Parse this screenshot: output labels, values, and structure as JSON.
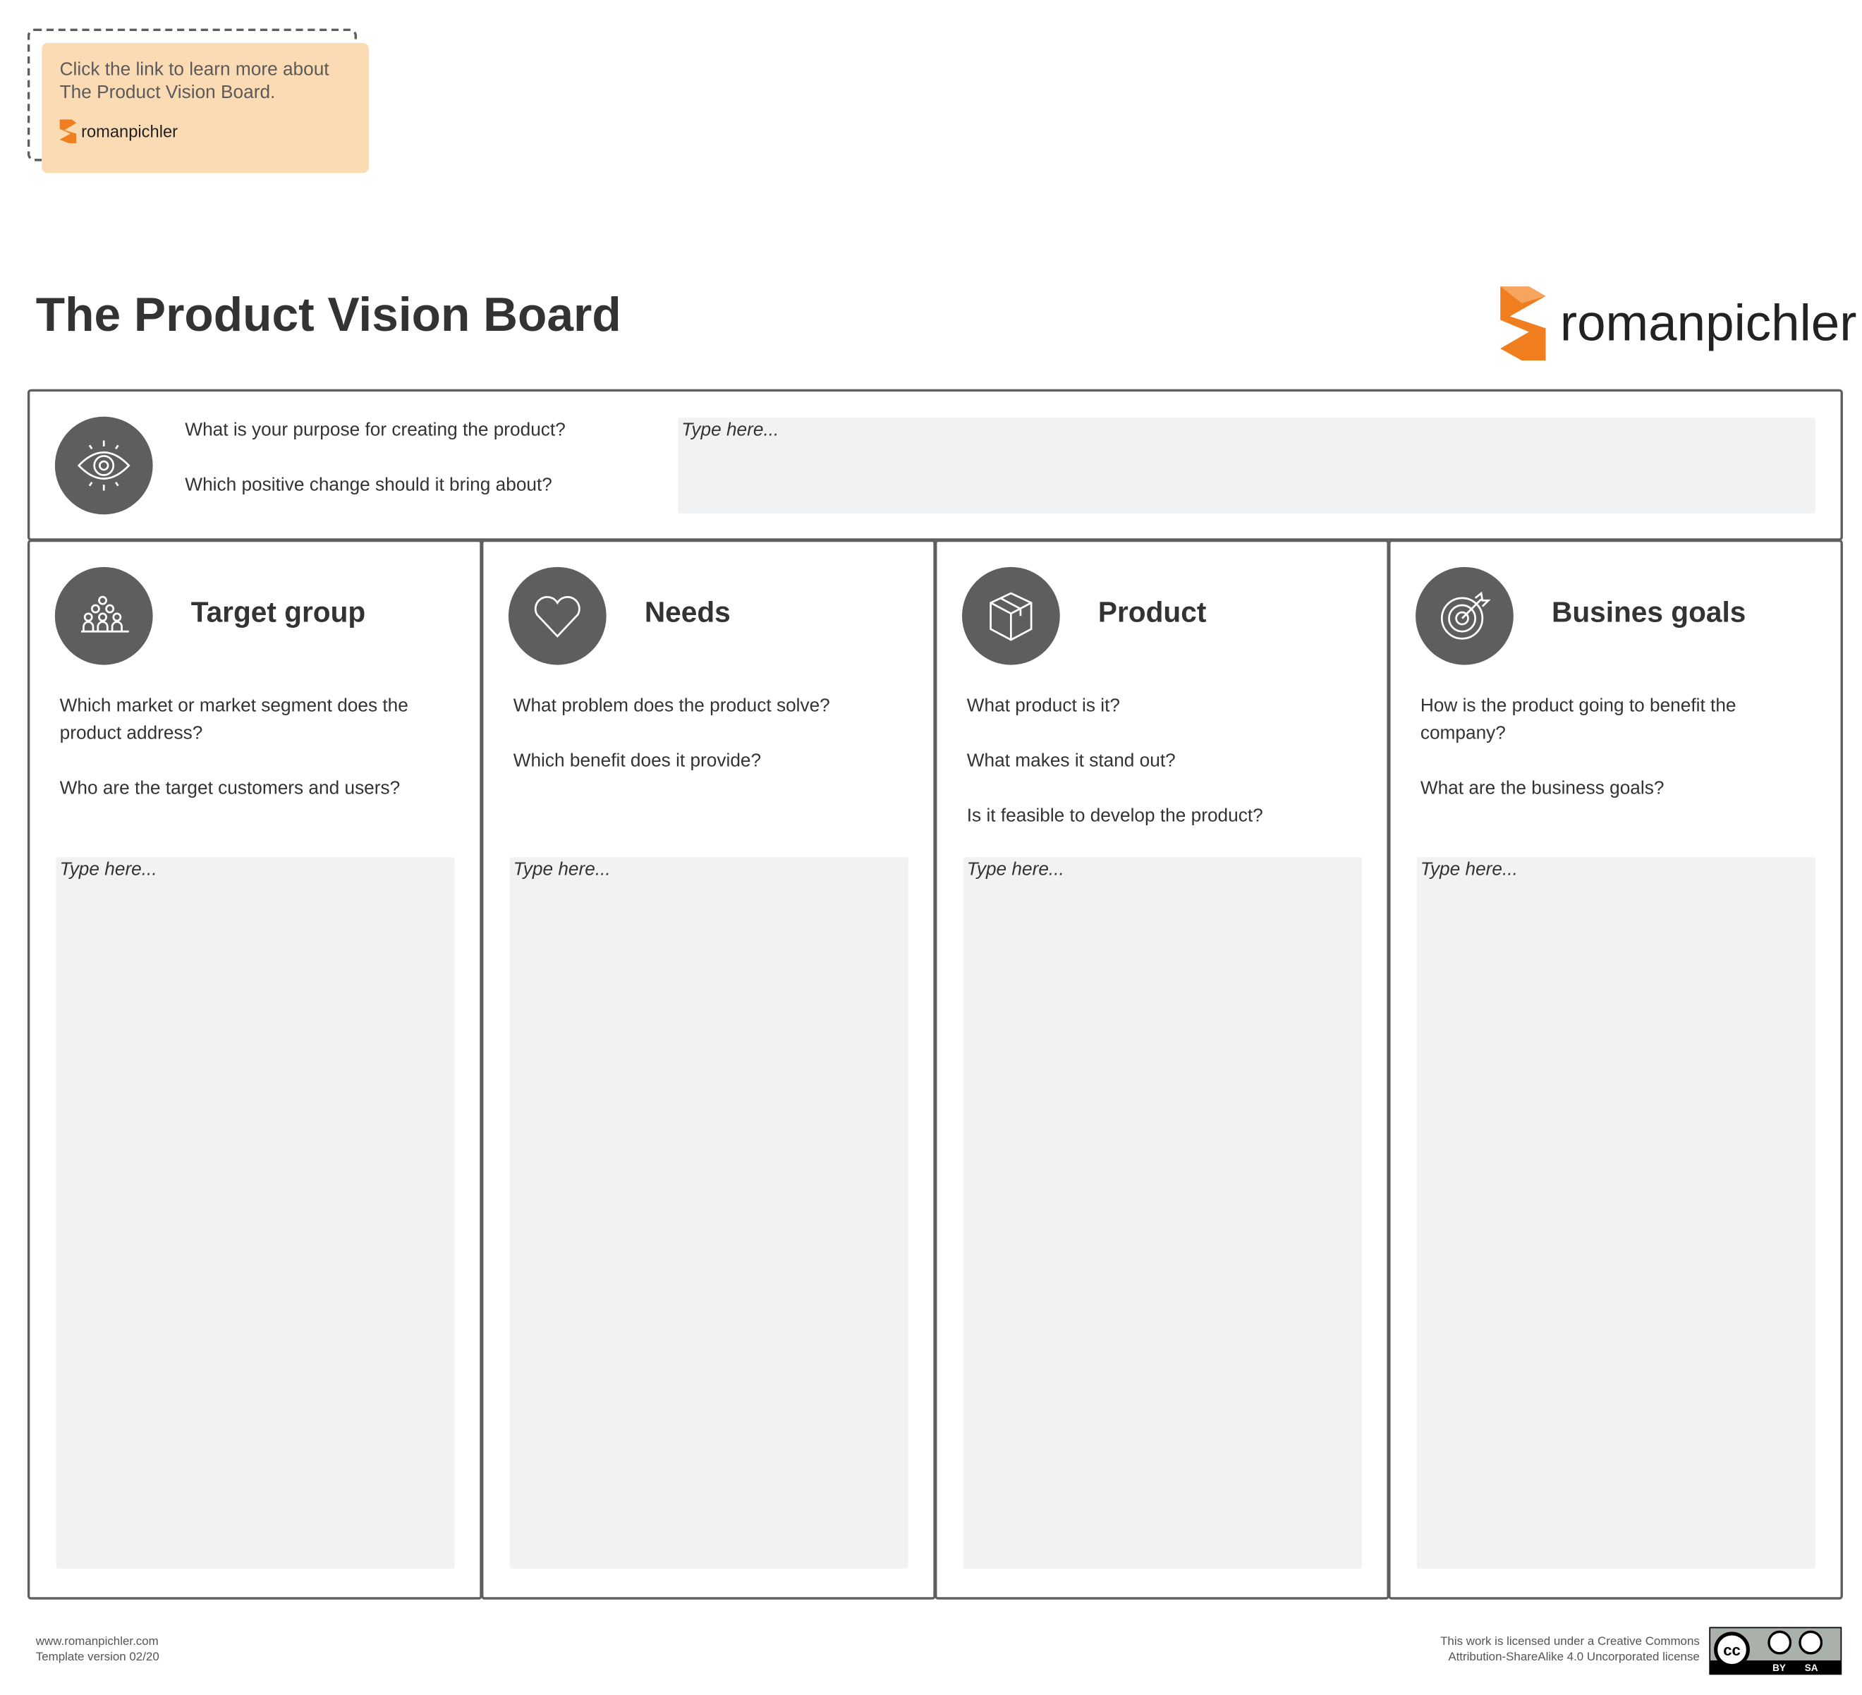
{
  "note": {
    "text": "Click the link to learn more about The Product Vision Board.",
    "brand": "romanpichler"
  },
  "header": {
    "title": "The Product Vision Board",
    "brand": "romanpichler"
  },
  "vision": {
    "icon": "eye-icon",
    "questions": [
      "What is your purpose for creating the product?",
      "Which positive change should it bring about?"
    ],
    "placeholder": "Type here..."
  },
  "columns": [
    {
      "icon": "people-group-icon",
      "title": "Target group",
      "questions": [
        "Which market or market segment does the product address?",
        "Who are the target customers and users?"
      ],
      "placeholder": "Type here..."
    },
    {
      "icon": "heart-icon",
      "title": "Needs",
      "questions": [
        "What problem does the product solve?",
        "Which benefit does it provide?"
      ],
      "placeholder": "Type here..."
    },
    {
      "icon": "box-icon",
      "title": "Product",
      "questions": [
        "What product is it?",
        "What makes it stand out?",
        "Is it feasible to develop the product?"
      ],
      "placeholder": "Type here..."
    },
    {
      "icon": "target-icon",
      "title": "Busines goals",
      "questions": [
        "How is the product going to benefit the company?",
        "What are the business goals?"
      ],
      "placeholder": "Type here..."
    }
  ],
  "footer": {
    "website": "www.romanpichler.com",
    "version": "Template version 02/20",
    "license_line1": "This work is licensed under a Creative Commons",
    "license_line2": "Attribution-ShareAlike 4.0 Uncorporated license",
    "badge": {
      "cc": "cc",
      "by": "BY",
      "sa": "SA"
    }
  },
  "colors": {
    "accent": "#f07d1e",
    "note_bg": "#fbdbb4",
    "icon_bg": "#5e5e5e",
    "input_bg": "#f1f2f4"
  }
}
